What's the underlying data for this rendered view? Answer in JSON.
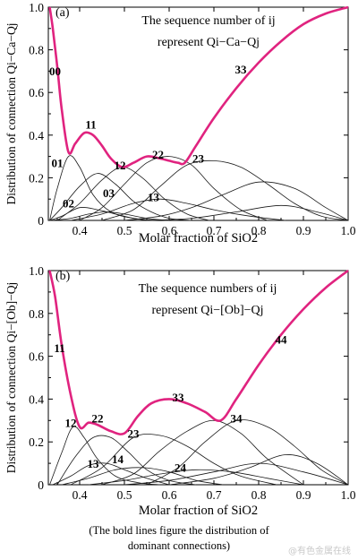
{
  "chart_data": [
    {
      "type": "line",
      "panel_label": "(a)",
      "title_line1": "The sequence number of ij",
      "title_line2": "represent Qi−Ca−Qj",
      "xlabel": "Molar fraction of SiO2",
      "ylabel": "Distribution of connection Qi−Ca−Qj",
      "xlim": [
        0.33,
        1.0
      ],
      "ylim": [
        0,
        1.0
      ],
      "xticks": [
        0.4,
        0.5,
        0.6,
        0.7,
        0.8,
        0.9,
        1.0
      ],
      "yticks": [
        0,
        0.2,
        0.4,
        0.6,
        0.8,
        1.0
      ],
      "tick_labels_x": [
        "0.4",
        "0.5",
        "0.6",
        "0.7",
        "0.8",
        "0.9",
        "1.0"
      ],
      "tick_labels_y": [
        "0",
        "0.2",
        "0.4",
        "0.6",
        "0.8",
        "1.0"
      ],
      "bold_series_color": "#e0237f",
      "thin_series_color": "#1a1a1a",
      "dominant_curve": {
        "x": [
          0.333,
          0.34,
          0.35,
          0.36,
          0.375,
          0.39,
          0.41,
          0.43,
          0.45,
          0.47,
          0.495,
          0.52,
          0.55,
          0.58,
          0.6,
          0.62,
          0.635,
          0.66,
          0.7,
          0.75,
          0.8,
          0.85,
          0.9,
          0.95,
          1.0
        ],
        "y": [
          1.0,
          0.9,
          0.72,
          0.52,
          0.32,
          0.36,
          0.41,
          0.4,
          0.35,
          0.29,
          0.25,
          0.27,
          0.3,
          0.29,
          0.28,
          0.27,
          0.27,
          0.35,
          0.48,
          0.62,
          0.74,
          0.84,
          0.92,
          0.97,
          1.0
        ]
      },
      "series": [
        {
          "name": "01",
          "x": [
            0.333,
            0.35,
            0.375,
            0.4,
            0.43,
            0.47,
            0.52,
            0.58
          ],
          "y": [
            0.0,
            0.15,
            0.3,
            0.25,
            0.12,
            0.04,
            0.01,
            0.0
          ]
        },
        {
          "name": "11",
          "x": [
            0.333,
            0.36,
            0.4,
            0.44,
            0.48,
            0.52,
            0.56,
            0.6,
            0.65
          ],
          "y": [
            0.0,
            0.06,
            0.16,
            0.22,
            0.17,
            0.09,
            0.04,
            0.01,
            0.0
          ]
        },
        {
          "name": "12",
          "x": [
            0.35,
            0.4,
            0.45,
            0.495,
            0.54,
            0.59,
            0.64,
            0.69
          ],
          "y": [
            0.0,
            0.08,
            0.19,
            0.25,
            0.2,
            0.1,
            0.03,
            0.0
          ]
        },
        {
          "name": "02",
          "x": [
            0.333,
            0.36,
            0.4,
            0.44,
            0.48,
            0.52,
            0.56,
            0.6
          ],
          "y": [
            0.0,
            0.02,
            0.06,
            0.05,
            0.03,
            0.01,
            0.0,
            0.0
          ]
        },
        {
          "name": "03",
          "x": [
            0.333,
            0.38,
            0.42,
            0.46,
            0.5,
            0.55,
            0.6
          ],
          "y": [
            0.0,
            0.01,
            0.03,
            0.04,
            0.03,
            0.01,
            0.0
          ]
        },
        {
          "name": "13",
          "x": [
            0.38,
            0.45,
            0.52,
            0.58,
            0.64,
            0.7,
            0.78,
            0.86
          ],
          "y": [
            0.0,
            0.03,
            0.08,
            0.1,
            0.08,
            0.05,
            0.02,
            0.0
          ]
        },
        {
          "name": "22",
          "x": [
            0.4,
            0.45,
            0.5,
            0.55,
            0.6,
            0.65,
            0.7,
            0.76,
            0.82
          ],
          "y": [
            0.0,
            0.06,
            0.17,
            0.27,
            0.3,
            0.26,
            0.15,
            0.05,
            0.0
          ]
        },
        {
          "name": "23",
          "x": [
            0.45,
            0.52,
            0.58,
            0.64,
            0.7,
            0.76,
            0.82,
            0.88,
            0.94,
            1.0
          ],
          "y": [
            0.0,
            0.05,
            0.16,
            0.26,
            0.28,
            0.25,
            0.17,
            0.08,
            0.02,
            0.0
          ]
        },
        {
          "name": "33",
          "x": [
            0.5,
            0.58,
            0.65,
            0.72,
            0.8,
            0.88,
            0.95,
            1.0
          ],
          "y": [
            0.0,
            0.02,
            0.06,
            0.12,
            0.18,
            0.15,
            0.06,
            0.0
          ]
        },
        {
          "name": "",
          "x": [
            0.55,
            0.65,
            0.75,
            0.85,
            0.93,
            1.0
          ],
          "y": [
            0.0,
            0.01,
            0.04,
            0.07,
            0.04,
            0.0
          ]
        }
      ],
      "annotations": [
        "00",
        "11",
        "01",
        "12",
        "22",
        "23",
        "02",
        "03",
        "13",
        "33"
      ]
    },
    {
      "type": "line",
      "panel_label": "(b)",
      "title_line1": "The sequence numbers of ij",
      "title_line2": "represent Qi−[Ob]−Qj",
      "xlabel": "Molar fraction of SiO2",
      "ylabel": "Distribution of connection Qi−[Ob]−Qj",
      "xlim": [
        0.33,
        1.0
      ],
      "ylim": [
        0,
        1.0
      ],
      "xticks": [
        0.4,
        0.5,
        0.6,
        0.7,
        0.8,
        0.9,
        1.0
      ],
      "yticks": [
        0,
        0.2,
        0.4,
        0.6,
        0.8,
        1.0
      ],
      "tick_labels_x": [
        "0.4",
        "0.5",
        "0.6",
        "0.7",
        "0.8",
        "0.9",
        "1.0"
      ],
      "tick_labels_y": [
        "0",
        "0.2",
        "0.4",
        "0.6",
        "0.8",
        "1.0"
      ],
      "bold_series_color": "#e0237f",
      "thin_series_color": "#1a1a1a",
      "dominant_curve": {
        "x": [
          0.333,
          0.345,
          0.36,
          0.38,
          0.4,
          0.42,
          0.44,
          0.47,
          0.5,
          0.53,
          0.56,
          0.6,
          0.64,
          0.68,
          0.715,
          0.75,
          0.8,
          0.85,
          0.9,
          0.95,
          1.0
        ],
        "y": [
          1.0,
          0.88,
          0.65,
          0.42,
          0.27,
          0.29,
          0.28,
          0.25,
          0.24,
          0.32,
          0.38,
          0.4,
          0.38,
          0.34,
          0.3,
          0.4,
          0.56,
          0.7,
          0.82,
          0.92,
          1.0
        ]
      },
      "series": [
        {
          "name": "12",
          "x": [
            0.333,
            0.36,
            0.385,
            0.41,
            0.44,
            0.48,
            0.53,
            0.58
          ],
          "y": [
            0.0,
            0.15,
            0.27,
            0.22,
            0.12,
            0.04,
            0.01,
            0.0
          ]
        },
        {
          "name": "22",
          "x": [
            0.35,
            0.39,
            0.43,
            0.47,
            0.51,
            0.55,
            0.6,
            0.66
          ],
          "y": [
            0.0,
            0.13,
            0.22,
            0.22,
            0.15,
            0.07,
            0.02,
            0.0
          ]
        },
        {
          "name": "13",
          "x": [
            0.34,
            0.38,
            0.42,
            0.46,
            0.5,
            0.55,
            0.6
          ],
          "y": [
            0.0,
            0.04,
            0.09,
            0.1,
            0.07,
            0.03,
            0.0
          ]
        },
        {
          "name": "14",
          "x": [
            0.36,
            0.42,
            0.48,
            0.54,
            0.6,
            0.66,
            0.72
          ],
          "y": [
            0.0,
            0.03,
            0.07,
            0.08,
            0.06,
            0.02,
            0.0
          ]
        },
        {
          "name": "23",
          "x": [
            0.38,
            0.45,
            0.52,
            0.58,
            0.64,
            0.7,
            0.76,
            0.84
          ],
          "y": [
            0.0,
            0.08,
            0.22,
            0.23,
            0.18,
            0.1,
            0.04,
            0.0
          ]
        },
        {
          "name": "24",
          "x": [
            0.42,
            0.5,
            0.58,
            0.66,
            0.74,
            0.82,
            0.9
          ],
          "y": [
            0.0,
            0.02,
            0.05,
            0.07,
            0.06,
            0.03,
            0.0
          ]
        },
        {
          "name": "33",
          "x": [
            0.45,
            0.52,
            0.58,
            0.64,
            0.7,
            0.76,
            0.82,
            0.9
          ],
          "y": [
            0.0,
            0.05,
            0.16,
            0.25,
            0.3,
            0.24,
            0.12,
            0.0
          ]
        },
        {
          "name": "34",
          "x": [
            0.55,
            0.62,
            0.68,
            0.75,
            0.82,
            0.88,
            0.94,
            1.0
          ],
          "y": [
            0.0,
            0.08,
            0.2,
            0.3,
            0.27,
            0.18,
            0.07,
            0.0
          ]
        },
        {
          "name": "44",
          "x": [
            0.6,
            0.7,
            0.78,
            0.86,
            0.93,
            1.0
          ],
          "y": [
            0.0,
            0.03,
            0.08,
            0.14,
            0.1,
            0.0
          ]
        },
        {
          "name": "",
          "x": [
            0.5,
            0.6,
            0.7,
            0.8,
            0.9,
            1.0
          ],
          "y": [
            0.0,
            0.02,
            0.06,
            0.1,
            0.06,
            0.0
          ]
        }
      ],
      "annotations": [
        "11",
        "12",
        "22",
        "23",
        "33",
        "34",
        "44",
        "13",
        "14",
        "24"
      ]
    }
  ],
  "caption": {
    "line1": "(The bold lines figure the distribution of",
    "line2": "dominant connections)"
  },
  "watermark": "@有色金属在线"
}
